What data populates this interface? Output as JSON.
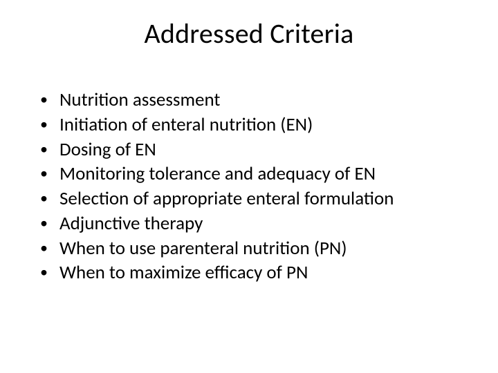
{
  "slide": {
    "title": "Addressed Criteria",
    "bullets": [
      "Nutrition assessment",
      "Initiation of enteral nutrition (EN)",
      "Dosing of EN",
      "Monitoring tolerance and adequacy of EN",
      "Selection of appropriate enteral formulation",
      "Adjunctive therapy",
      "When to use parenteral nutrition (PN)",
      "When to maximize efficacy of PN"
    ],
    "title_fontsize": 40,
    "body_fontsize": 27,
    "background_color": "#ffffff",
    "text_color": "#000000"
  }
}
